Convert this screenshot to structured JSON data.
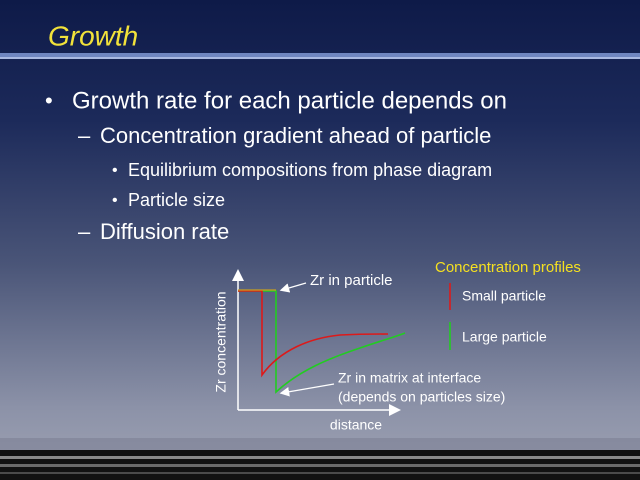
{
  "header": {
    "title": "Growth"
  },
  "bullets": [
    {
      "level": 1,
      "text": "Growth rate for each particle depends on"
    },
    {
      "level": 2,
      "text": "Concentration gradient ahead of particle"
    },
    {
      "level": 3,
      "text": "Equilibrium compositions from phase diagram"
    },
    {
      "level": 3,
      "text": "Particle size"
    },
    {
      "level": 2,
      "text": "Diffusion rate"
    }
  ],
  "diagram": {
    "y_axis_label": "Zr concentration",
    "x_axis_label": "distance",
    "particle_label": "Zr in particle",
    "interface_label": [
      "Zr in matrix at interface",
      "(depends on particles size)"
    ],
    "legend_title": "Concentration profiles",
    "legend": [
      "Small particle",
      "Large particle"
    ]
  }
}
